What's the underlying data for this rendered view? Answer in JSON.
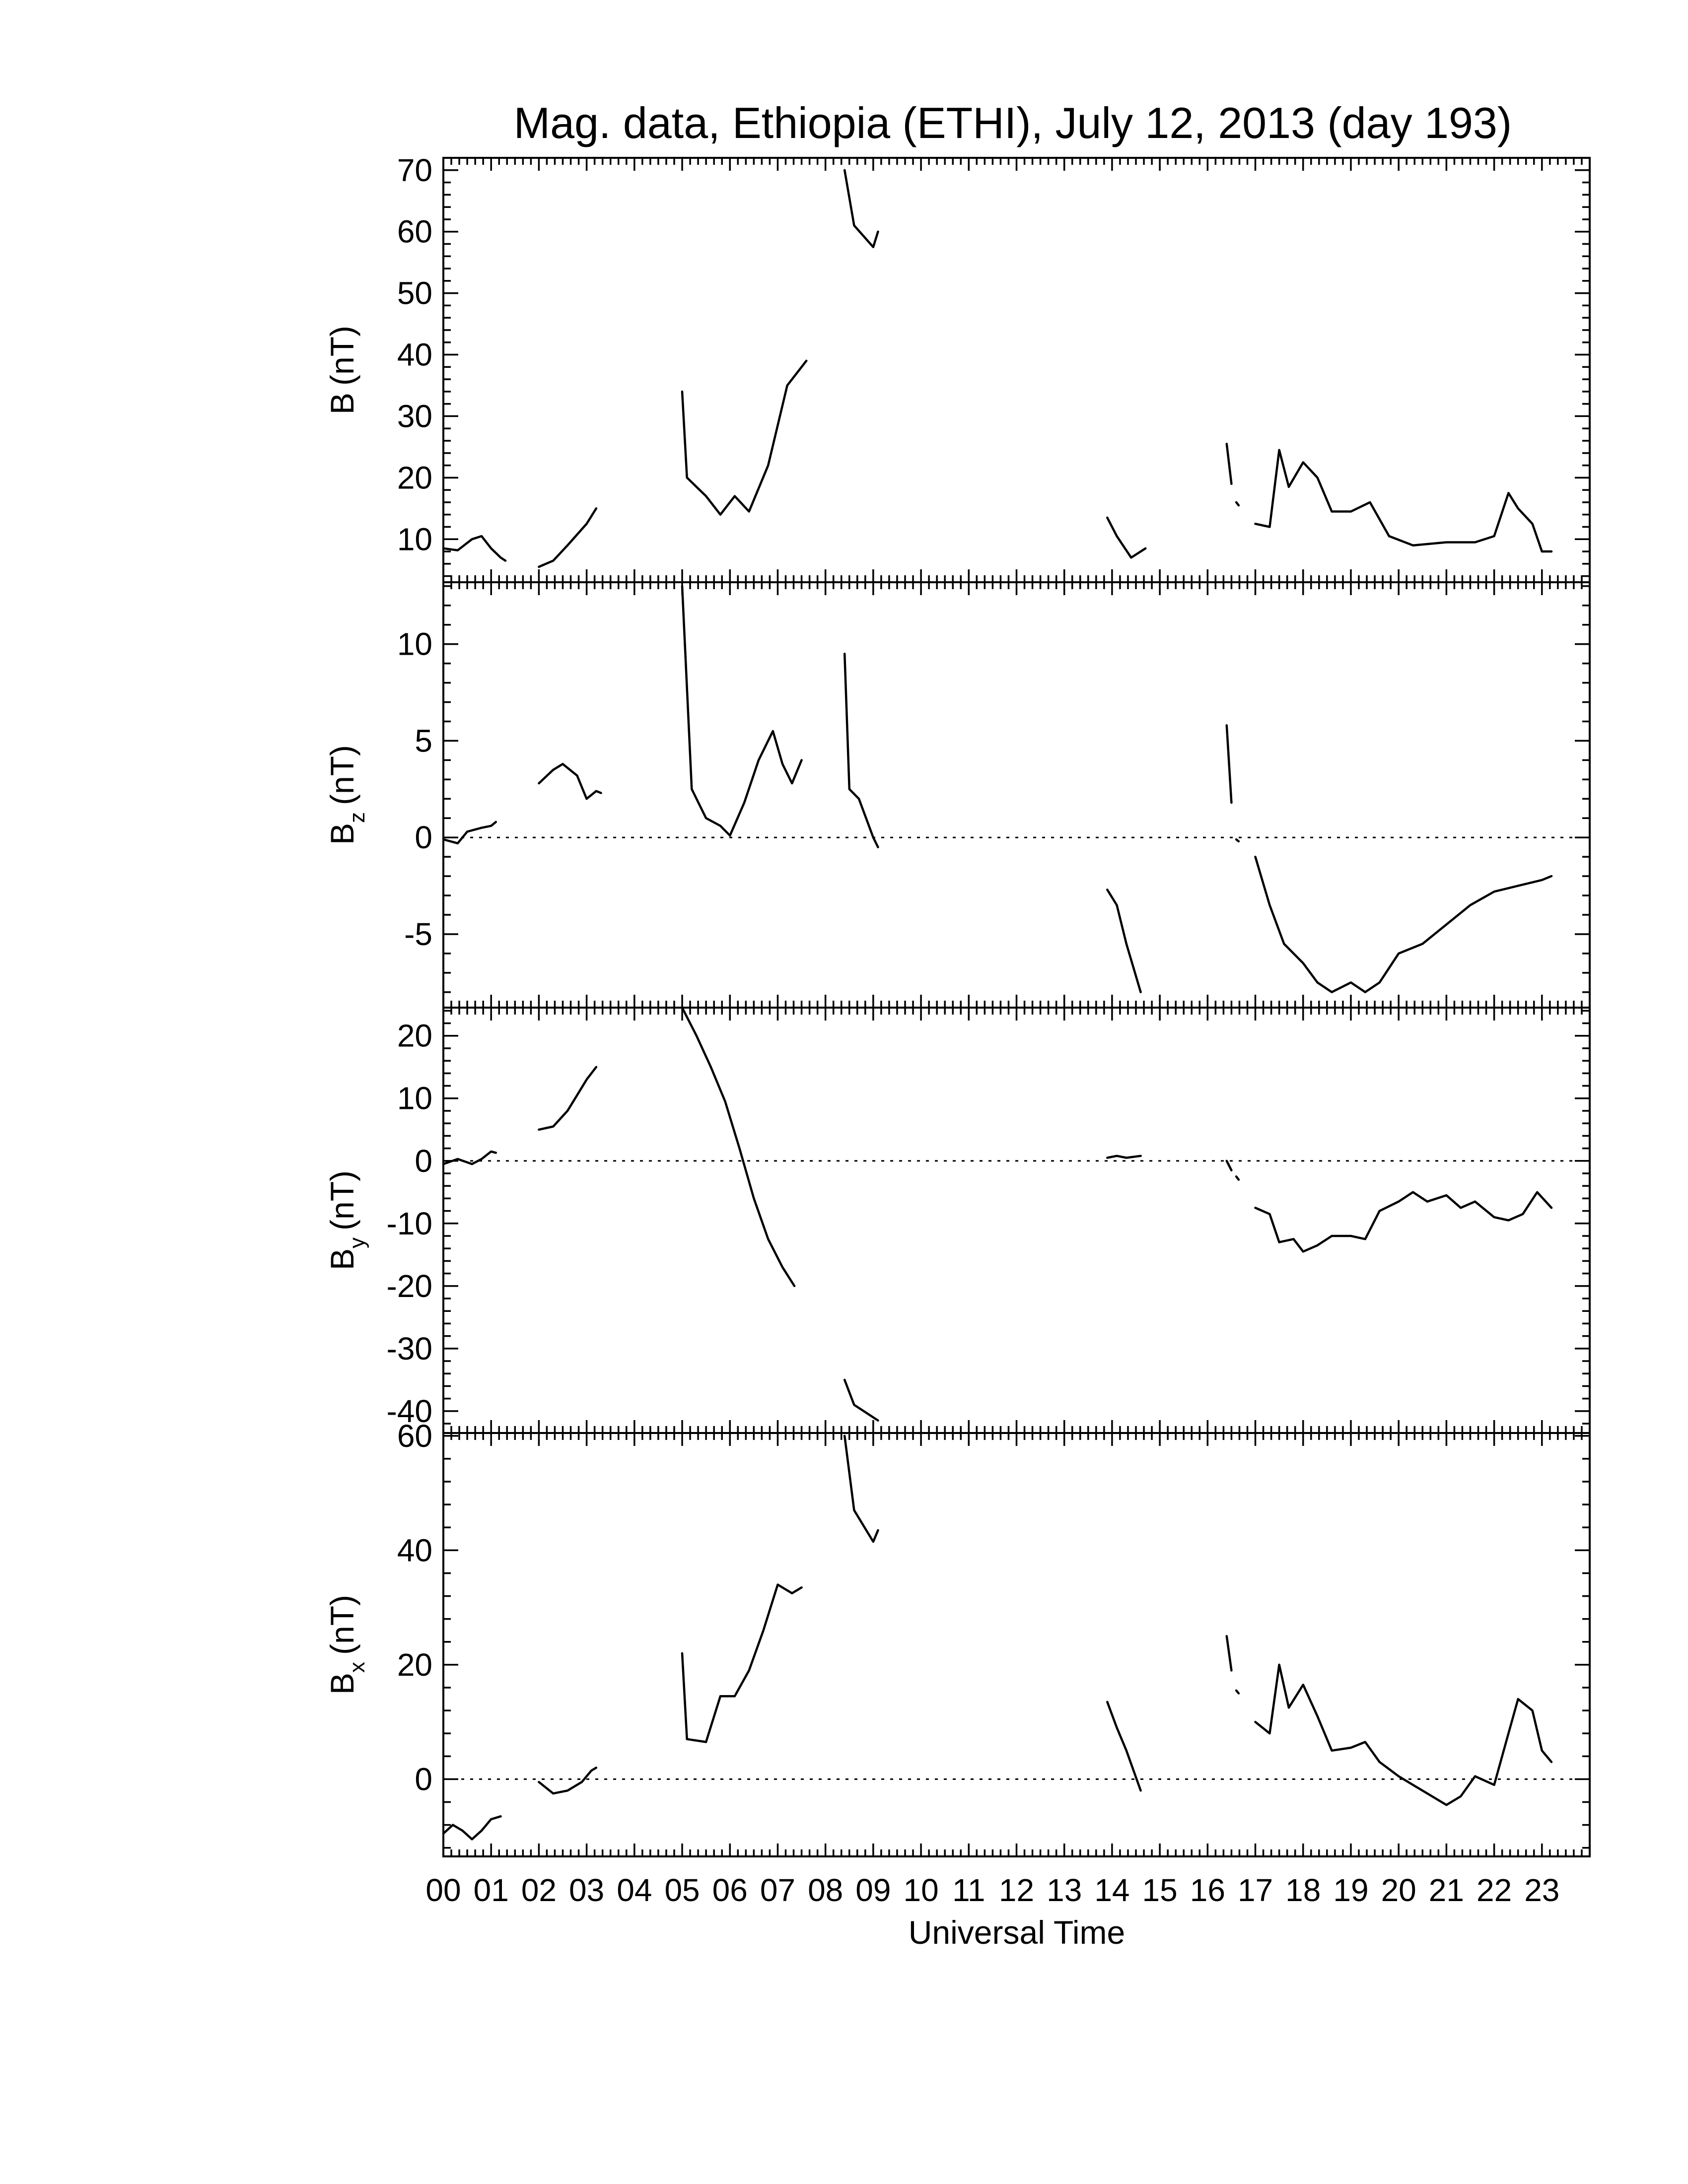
{
  "title": "Mag. data, Ethiopia (ETHI), July 12, 2013 (day 193)",
  "x_axis": {
    "label": "Universal Time",
    "ticks": [
      "00",
      "01",
      "02",
      "03",
      "04",
      "05",
      "06",
      "07",
      "08",
      "09",
      "10",
      "11",
      "12",
      "13",
      "14",
      "15",
      "16",
      "17",
      "18",
      "19",
      "20",
      "21",
      "22",
      "23"
    ]
  },
  "panels": [
    {
      "label_main": "B",
      "label_sub": "",
      "label_unit": "(nT)"
    },
    {
      "label_main": "B",
      "label_sub": "z",
      "label_unit": "(nT)"
    },
    {
      "label_main": "B",
      "label_sub": "y",
      "label_unit": "(nT)"
    },
    {
      "label_main": "B",
      "label_sub": "x",
      "label_unit": "(nT)"
    }
  ],
  "chart_data": [
    {
      "type": "line",
      "ylabel": "B (nT)",
      "xlabel": "Universal Time",
      "xlim": [
        0,
        24
      ],
      "ylim": [
        3,
        72
      ],
      "yticks": [
        10,
        20,
        30,
        40,
        50,
        60,
        70
      ],
      "zero_line": false,
      "segments": [
        [
          [
            0.0,
            8.5
          ],
          [
            0.3,
            8.2
          ],
          [
            0.6,
            10.0
          ],
          [
            0.8,
            10.5
          ],
          [
            1.0,
            8.5
          ],
          [
            1.2,
            7.0
          ],
          [
            1.3,
            6.5
          ]
        ],
        [
          [
            2.0,
            5.5
          ],
          [
            2.3,
            6.5
          ],
          [
            2.6,
            9.0
          ],
          [
            3.0,
            12.5
          ],
          [
            3.2,
            15.0
          ]
        ],
        [
          [
            5.0,
            34.0
          ],
          [
            5.1,
            20.0
          ],
          [
            5.5,
            17.0
          ],
          [
            5.8,
            14.0
          ],
          [
            6.1,
            17.0
          ],
          [
            6.4,
            14.5
          ],
          [
            6.8,
            22.0
          ],
          [
            7.2,
            35.0
          ],
          [
            7.6,
            39.0
          ]
        ],
        [
          [
            8.4,
            70.0
          ],
          [
            8.6,
            61.0
          ],
          [
            9.0,
            57.5
          ],
          [
            9.1,
            60.0
          ]
        ],
        [
          [
            13.9,
            13.5
          ],
          [
            14.1,
            10.5
          ],
          [
            14.4,
            7.0
          ],
          [
            14.7,
            8.5
          ]
        ],
        [
          [
            16.4,
            25.5
          ],
          [
            16.5,
            19.0
          ]
        ],
        [
          [
            16.6,
            16.0
          ],
          [
            16.65,
            15.5
          ]
        ],
        [
          [
            17.0,
            12.5
          ],
          [
            17.3,
            12.0
          ],
          [
            17.5,
            24.5
          ],
          [
            17.7,
            18.5
          ],
          [
            18.0,
            22.5
          ],
          [
            18.3,
            20.0
          ],
          [
            18.6,
            14.5
          ],
          [
            19.0,
            14.5
          ],
          [
            19.4,
            16.0
          ],
          [
            19.8,
            10.5
          ],
          [
            20.3,
            9.0
          ],
          [
            21.0,
            9.5
          ],
          [
            21.6,
            9.5
          ],
          [
            22.0,
            10.5
          ],
          [
            22.3,
            17.5
          ],
          [
            22.5,
            15.0
          ],
          [
            22.8,
            12.5
          ],
          [
            23.0,
            8.0
          ],
          [
            23.2,
            8.0
          ]
        ]
      ]
    },
    {
      "type": "line",
      "ylabel": "Bz (nT)",
      "xlabel": "Universal Time",
      "xlim": [
        0,
        24
      ],
      "ylim": [
        -8.8,
        13.2
      ],
      "yticks": [
        -5,
        0,
        5,
        10
      ],
      "zero_line": true,
      "segments": [
        [
          [
            0.0,
            -0.1
          ],
          [
            0.3,
            -0.3
          ],
          [
            0.5,
            0.3
          ],
          [
            0.8,
            0.5
          ],
          [
            1.0,
            0.6
          ],
          [
            1.1,
            0.8
          ]
        ],
        [
          [
            2.0,
            2.8
          ],
          [
            2.3,
            3.5
          ],
          [
            2.5,
            3.8
          ],
          [
            2.8,
            3.2
          ],
          [
            3.0,
            2.0
          ],
          [
            3.2,
            2.4
          ],
          [
            3.3,
            2.3
          ]
        ],
        [
          [
            5.0,
            13.0
          ],
          [
            5.2,
            2.5
          ],
          [
            5.5,
            1.0
          ],
          [
            5.8,
            0.6
          ],
          [
            6.0,
            0.1
          ],
          [
            6.3,
            1.8
          ],
          [
            6.6,
            4.0
          ],
          [
            6.9,
            5.5
          ],
          [
            7.1,
            3.8
          ],
          [
            7.3,
            2.8
          ],
          [
            7.5,
            4.0
          ]
        ],
        [
          [
            8.4,
            9.5
          ],
          [
            8.5,
            2.5
          ],
          [
            8.7,
            2.0
          ],
          [
            9.0,
            0.0
          ],
          [
            9.1,
            -0.5
          ]
        ],
        [
          [
            13.9,
            -2.7
          ],
          [
            14.1,
            -3.5
          ],
          [
            14.3,
            -5.5
          ],
          [
            14.6,
            -8.0
          ]
        ],
        [
          [
            16.4,
            5.8
          ],
          [
            16.5,
            1.8
          ]
        ],
        [
          [
            16.6,
            -0.1
          ],
          [
            16.65,
            -0.2
          ]
        ],
        [
          [
            17.0,
            -1.0
          ],
          [
            17.3,
            -3.5
          ],
          [
            17.6,
            -5.5
          ],
          [
            18.0,
            -6.5
          ],
          [
            18.3,
            -7.5
          ],
          [
            18.6,
            -8.0
          ],
          [
            19.0,
            -7.5
          ],
          [
            19.3,
            -8.0
          ],
          [
            19.6,
            -7.5
          ],
          [
            20.0,
            -6.0
          ],
          [
            20.5,
            -5.5
          ],
          [
            21.0,
            -4.5
          ],
          [
            21.5,
            -3.5
          ],
          [
            22.0,
            -2.8
          ],
          [
            22.5,
            -2.5
          ],
          [
            23.0,
            -2.2
          ],
          [
            23.2,
            -2.0
          ]
        ]
      ]
    },
    {
      "type": "line",
      "ylabel": "By (nT)",
      "xlabel": "Universal Time",
      "xlim": [
        0,
        24
      ],
      "ylim": [
        -43.5,
        24.5
      ],
      "yticks": [
        -40,
        -30,
        -20,
        -10,
        0,
        10,
        20
      ],
      "zero_line": true,
      "segments": [
        [
          [
            0.0,
            -0.5
          ],
          [
            0.3,
            0.3
          ],
          [
            0.6,
            -0.5
          ],
          [
            0.8,
            0.3
          ],
          [
            1.0,
            1.5
          ],
          [
            1.1,
            1.3
          ]
        ],
        [
          [
            2.0,
            5.0
          ],
          [
            2.3,
            5.5
          ],
          [
            2.6,
            8.0
          ],
          [
            2.8,
            10.5
          ],
          [
            3.0,
            13.0
          ],
          [
            3.2,
            15.0
          ]
        ],
        [
          [
            5.0,
            24.5
          ],
          [
            5.3,
            20.0
          ],
          [
            5.6,
            15.0
          ],
          [
            5.9,
            9.5
          ],
          [
            6.2,
            2.0
          ],
          [
            6.5,
            -6.0
          ],
          [
            6.8,
            -12.5
          ],
          [
            7.1,
            -17.0
          ],
          [
            7.35,
            -20.0
          ]
        ],
        [
          [
            8.4,
            -35.0
          ],
          [
            8.6,
            -39.0
          ],
          [
            9.0,
            -41.0
          ],
          [
            9.1,
            -41.5
          ]
        ],
        [
          [
            13.9,
            0.5
          ],
          [
            14.1,
            0.8
          ],
          [
            14.3,
            0.5
          ],
          [
            14.6,
            0.8
          ]
        ],
        [
          [
            16.4,
            0.0
          ],
          [
            16.5,
            -1.5
          ]
        ],
        [
          [
            16.6,
            -2.5
          ],
          [
            16.65,
            -3.0
          ]
        ],
        [
          [
            17.0,
            -7.5
          ],
          [
            17.3,
            -8.5
          ],
          [
            17.5,
            -13.0
          ],
          [
            17.8,
            -12.5
          ],
          [
            18.0,
            -14.5
          ],
          [
            18.3,
            -13.5
          ],
          [
            18.6,
            -12.0
          ],
          [
            19.0,
            -12.0
          ],
          [
            19.3,
            -12.5
          ],
          [
            19.6,
            -8.0
          ],
          [
            20.0,
            -6.5
          ],
          [
            20.3,
            -5.0
          ],
          [
            20.6,
            -6.5
          ],
          [
            21.0,
            -5.5
          ],
          [
            21.3,
            -7.5
          ],
          [
            21.6,
            -6.5
          ],
          [
            22.0,
            -9.0
          ],
          [
            22.3,
            -9.5
          ],
          [
            22.6,
            -8.5
          ],
          [
            22.9,
            -5.0
          ],
          [
            23.2,
            -7.5
          ]
        ]
      ]
    },
    {
      "type": "line",
      "ylabel": "Bx (nT)",
      "xlabel": "Universal Time",
      "xlim": [
        0,
        24
      ],
      "ylim": [
        -13.5,
        60.5
      ],
      "yticks": [
        0,
        20,
        40,
        60
      ],
      "zero_line": true,
      "segments": [
        [
          [
            0.0,
            -9.5
          ],
          [
            0.2,
            -8.0
          ],
          [
            0.4,
            -9.0
          ],
          [
            0.6,
            -10.5
          ],
          [
            0.8,
            -9.0
          ],
          [
            1.0,
            -7.0
          ],
          [
            1.2,
            -6.5
          ]
        ],
        [
          [
            2.0,
            -0.5
          ],
          [
            2.3,
            -2.5
          ],
          [
            2.6,
            -2.0
          ],
          [
            2.9,
            -0.5
          ],
          [
            3.1,
            1.5
          ],
          [
            3.2,
            2.0
          ]
        ],
        [
          [
            5.0,
            22.0
          ],
          [
            5.1,
            7.0
          ],
          [
            5.5,
            6.5
          ],
          [
            5.8,
            14.5
          ],
          [
            6.1,
            14.5
          ],
          [
            6.4,
            19.0
          ],
          [
            6.7,
            26.0
          ],
          [
            7.0,
            34.0
          ],
          [
            7.3,
            32.5
          ],
          [
            7.5,
            33.5
          ]
        ],
        [
          [
            8.4,
            60.0
          ],
          [
            8.6,
            47.0
          ],
          [
            9.0,
            41.5
          ],
          [
            9.1,
            43.5
          ]
        ],
        [
          [
            13.9,
            13.5
          ],
          [
            14.1,
            9.0
          ],
          [
            14.3,
            5.0
          ],
          [
            14.6,
            -2.0
          ]
        ],
        [
          [
            16.4,
            25.0
          ],
          [
            16.5,
            19.0
          ]
        ],
        [
          [
            16.6,
            15.5
          ],
          [
            16.65,
            15.0
          ]
        ],
        [
          [
            17.0,
            10.0
          ],
          [
            17.3,
            8.0
          ],
          [
            17.5,
            20.0
          ],
          [
            17.7,
            12.5
          ],
          [
            18.0,
            16.5
          ],
          [
            18.3,
            11.0
          ],
          [
            18.6,
            5.0
          ],
          [
            19.0,
            5.5
          ],
          [
            19.3,
            6.5
          ],
          [
            19.6,
            3.0
          ],
          [
            20.0,
            0.5
          ],
          [
            20.3,
            -1.0
          ],
          [
            20.6,
            -2.5
          ],
          [
            21.0,
            -4.5
          ],
          [
            21.3,
            -3.0
          ],
          [
            21.6,
            0.5
          ],
          [
            22.0,
            -1.0
          ],
          [
            22.3,
            8.0
          ],
          [
            22.5,
            14.0
          ],
          [
            22.8,
            12.0
          ],
          [
            23.0,
            5.0
          ],
          [
            23.2,
            3.0
          ]
        ]
      ]
    }
  ]
}
